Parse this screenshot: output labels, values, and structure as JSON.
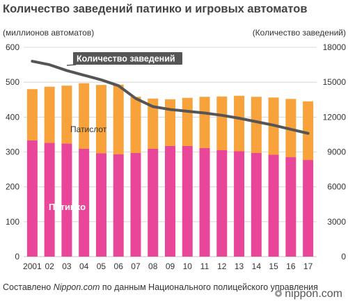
{
  "title": "Количество заведений патинко и игровых автоматов",
  "left_unit": "(миллионов автоматов)",
  "right_unit": "(Количество заведений)",
  "source": {
    "prefix": "Составлено ",
    "site": "Nippon.com",
    "rest": " по данным Национального полицейского управления"
  },
  "brand": "nippon.com",
  "chart_data": {
    "type": "bar",
    "stacked": true,
    "categories": [
      "2001",
      "02",
      "03",
      "04",
      "05",
      "06",
      "07",
      "08",
      "09",
      "10",
      "11",
      "12",
      "13",
      "14",
      "15",
      "16",
      "17"
    ],
    "series": [
      {
        "name": "Патинко",
        "color": "#e9469a",
        "values": [
          333,
          326,
          324,
          309,
          296,
          293,
          297,
          309,
          317,
          317,
          311,
          305,
          302,
          297,
          292,
          285,
          277
        ]
      },
      {
        "name": "Патислот",
        "color": "#f7a23b",
        "values": [
          147,
          161,
          166,
          188,
          196,
          200,
          161,
          144,
          134,
          138,
          147,
          154,
          159,
          161,
          164,
          167,
          168
        ]
      }
    ],
    "line": {
      "name": "Количество заведений",
      "color": "#555555",
      "values": [
        16800,
        16500,
        16000,
        15600,
        15200,
        14700,
        13600,
        12900,
        12650,
        12500,
        12350,
        12150,
        11900,
        11600,
        11300,
        10950,
        10600
      ]
    },
    "ylim_left": [
      0,
      600
    ],
    "yticks_left": [
      0,
      100,
      200,
      300,
      400,
      500,
      600
    ],
    "ylim_right": [
      0,
      18000
    ],
    "yticks_right": [
      0,
      3000,
      6000,
      9000,
      12000,
      15000,
      18000
    ],
    "grid": true
  }
}
